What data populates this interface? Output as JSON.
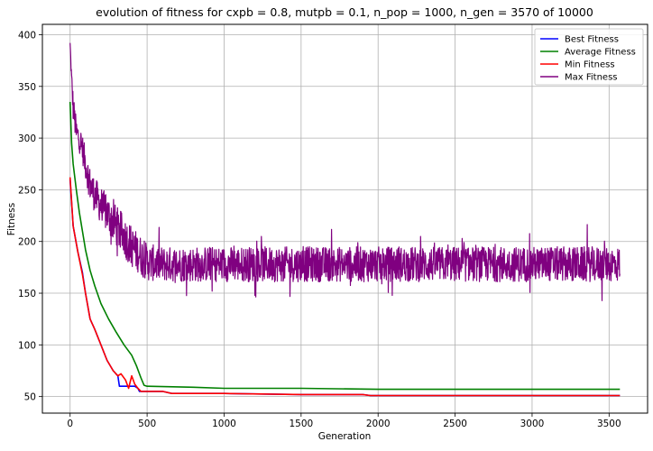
{
  "chart_data": {
    "type": "line",
    "title": "evolution of fitness for cxpb = 0.8, mutpb = 0.1, n_pop = 1000, n_gen = 3570 of 10000",
    "xlabel": "Generation",
    "ylabel": "Fitness",
    "xlim": [
      -180,
      3750
    ],
    "ylim": [
      34,
      410
    ],
    "xticks": [
      0,
      500,
      1000,
      1500,
      2000,
      2500,
      3000,
      3500
    ],
    "yticks": [
      50,
      100,
      150,
      200,
      250,
      300,
      350,
      400
    ],
    "grid": true,
    "legend_position": "top-right",
    "series": [
      {
        "name": "Best Fitness",
        "color": "#0000ff",
        "x": [
          0,
          20,
          50,
          80,
          100,
          130,
          160,
          200,
          240,
          280,
          310,
          320,
          420,
          440,
          450,
          470,
          600,
          660,
          1000,
          1500,
          1900,
          1950,
          2500,
          3000,
          3570
        ],
        "y": [
          260,
          215,
          190,
          170,
          150,
          125,
          115,
          100,
          85,
          75,
          70,
          60,
          60,
          58,
          55,
          55,
          55,
          53,
          53,
          52,
          52,
          51,
          51,
          51,
          51
        ]
      },
      {
        "name": "Average Fitness",
        "color": "#008000",
        "x": [
          0,
          10,
          20,
          40,
          60,
          80,
          100,
          130,
          160,
          200,
          250,
          300,
          350,
          400,
          430,
          460,
          480,
          500,
          800,
          1000,
          1500,
          2000,
          2500,
          3000,
          3570
        ],
        "y": [
          335,
          295,
          275,
          250,
          228,
          210,
          192,
          172,
          157,
          140,
          125,
          112,
          100,
          90,
          80,
          68,
          61,
          60,
          59,
          58,
          58,
          57,
          57,
          57,
          57
        ]
      },
      {
        "name": "Min Fitness",
        "color": "#ff0000",
        "x": [
          0,
          20,
          50,
          80,
          100,
          130,
          160,
          200,
          240,
          280,
          310,
          330,
          360,
          380,
          400,
          420,
          440,
          460,
          500,
          600,
          660,
          1000,
          1500,
          1900,
          1950,
          2500,
          3000,
          3570
        ],
        "y": [
          262,
          215,
          190,
          168,
          150,
          125,
          115,
          100,
          85,
          75,
          70,
          72,
          66,
          58,
          70,
          62,
          58,
          55,
          55,
          55,
          53,
          53,
          52,
          52,
          51,
          51,
          51,
          51
        ]
      },
      {
        "name": "Max Fitness",
        "color": "#800080",
        "x": [
          0,
          10,
          20,
          40,
          60,
          80,
          100,
          130,
          160,
          200,
          250,
          300,
          350,
          400,
          450,
          500,
          600,
          800,
          1000,
          1500,
          2000,
          2500,
          3000,
          3570
        ],
        "y": [
          392,
          355,
          330,
          305,
          300,
          290,
          275,
          255,
          245,
          235,
          225,
          215,
          205,
          195,
          188,
          180,
          178,
          178,
          178,
          178,
          178,
          178,
          178,
          178
        ],
        "noise": [
          0,
          12,
          14,
          14,
          14,
          14,
          15,
          16,
          17,
          18,
          19,
          20,
          20,
          20,
          19,
          18,
          17,
          17,
          17,
          17,
          17,
          17,
          17,
          17
        ]
      }
    ]
  }
}
